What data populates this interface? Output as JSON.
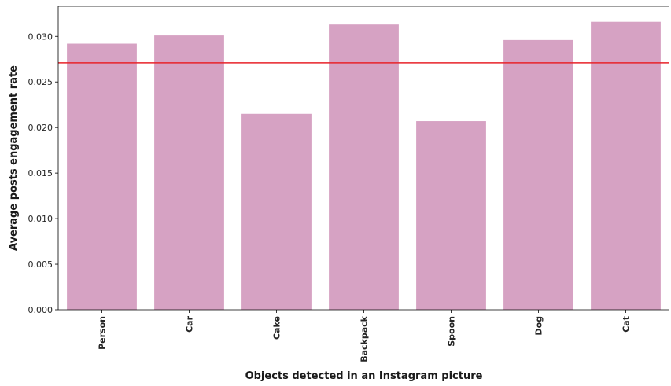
{
  "chart_data": {
    "type": "bar",
    "title": "",
    "xlabel": "Objects detected in an Instagram picture",
    "ylabel": "Average posts engagement rate",
    "categories": [
      "Person",
      "Car",
      "Cake",
      "Backpack",
      "Spoon",
      "Dog",
      "Cat"
    ],
    "values": [
      0.0292,
      0.0301,
      0.0215,
      0.0313,
      0.0207,
      0.0296,
      0.0316
    ],
    "ylim": [
      0.0,
      0.0333
    ],
    "yticks": [
      0.0,
      0.005,
      0.01,
      0.015,
      0.02,
      0.025,
      0.03
    ],
    "ytick_labels": [
      "0.000",
      "0.005",
      "0.010",
      "0.015",
      "0.020",
      "0.025",
      "0.030"
    ],
    "reference_line": 0.0271,
    "grid": false,
    "legend": "none",
    "bar_color": "#d6a2c3",
    "reference_line_color": "#e8232a"
  }
}
